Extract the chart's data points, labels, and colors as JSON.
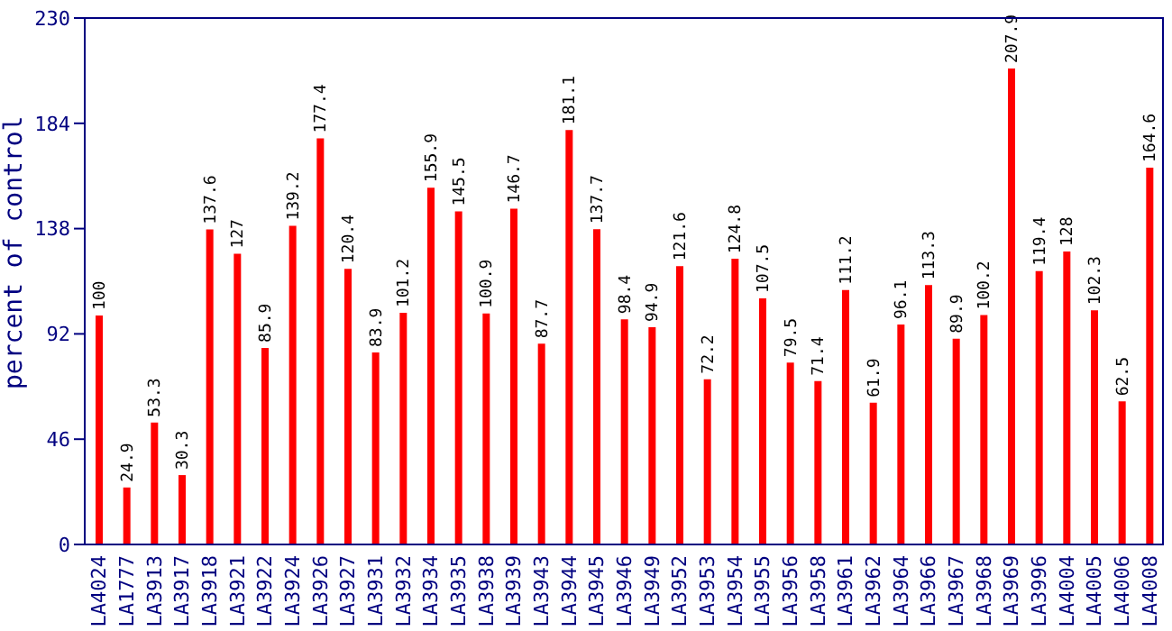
{
  "chart_data": {
    "type": "bar",
    "ylabel": "percent of control",
    "categories": [
      "LA4024",
      "LA1777",
      "LA3913",
      "LA3917",
      "LA3918",
      "LA3921",
      "LA3922",
      "LA3924",
      "LA3926",
      "LA3927",
      "LA3931",
      "LA3932",
      "LA3934",
      "LA3935",
      "LA3938",
      "LA3939",
      "LA3943",
      "LA3944",
      "LA3945",
      "LA3946",
      "LA3949",
      "LA3952",
      "LA3953",
      "LA3954",
      "LA3955",
      "LA3956",
      "LA3958",
      "LA3961",
      "LA3962",
      "LA3964",
      "LA3966",
      "LA3967",
      "LA3968",
      "LA3969",
      "LA3996",
      "LA4004",
      "LA4005",
      "LA4006",
      "LA4008"
    ],
    "values": [
      100,
      24.9,
      53.3,
      30.3,
      137.6,
      127,
      85.9,
      139.2,
      177.4,
      120.4,
      83.9,
      101.2,
      155.9,
      145.5,
      100.9,
      146.7,
      87.7,
      181.1,
      137.7,
      98.4,
      94.9,
      121.6,
      72.2,
      124.8,
      107.5,
      79.5,
      71.4,
      111.2,
      61.9,
      96.1,
      113.3,
      89.9,
      100.2,
      207.9,
      119.4,
      128,
      102.3,
      62.5,
      164.6
    ],
    "color": "#ff0000",
    "ylim": [
      0,
      230
    ],
    "yticks": [
      0,
      46,
      92,
      138,
      184,
      230
    ],
    "data_labels": true,
    "grid": false
  }
}
